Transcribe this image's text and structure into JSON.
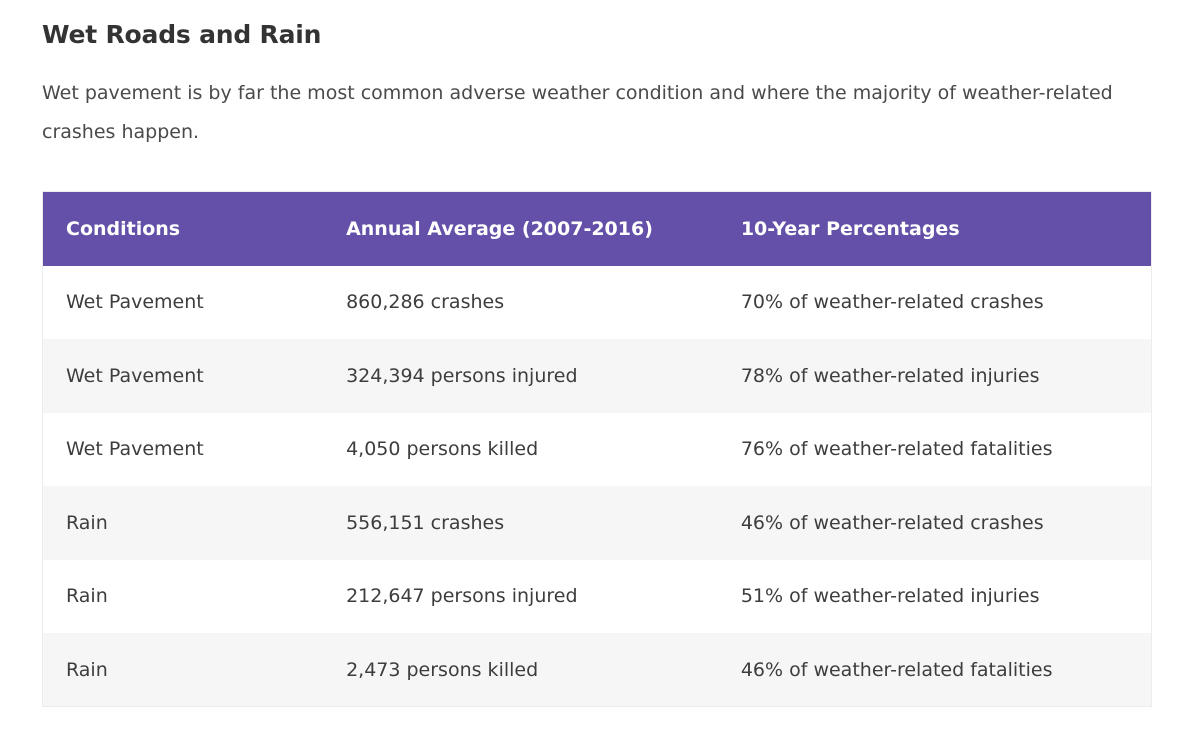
{
  "section": {
    "heading": "Wet Roads and Rain",
    "intro": "Wet pavement is by far the most common adverse weather condition and where the majority of weather-related crashes happen."
  },
  "table": {
    "headers": [
      "Conditions",
      "Annual Average (2007-2016)",
      "10-Year Percentages"
    ],
    "rows": [
      [
        "Wet Pavement",
        "860,286 crashes",
        "70% of weather-related crashes"
      ],
      [
        "Wet Pavement",
        "324,394 persons injured",
        "78% of weather-related injuries"
      ],
      [
        "Wet Pavement",
        "4,050 persons killed",
        "76% of weather-related fatalities"
      ],
      [
        "Rain",
        "556,151 crashes",
        "46% of weather-related crashes"
      ],
      [
        "Rain",
        "212,647 persons injured",
        "51% of weather-related injuries"
      ],
      [
        "Rain",
        "2,473 persons killed",
        "46% of weather-related fatalities"
      ]
    ]
  },
  "colors": {
    "header_bg": "#6450a8",
    "header_text": "#ffffff",
    "row_alt_bg": "#f6f6f6"
  }
}
